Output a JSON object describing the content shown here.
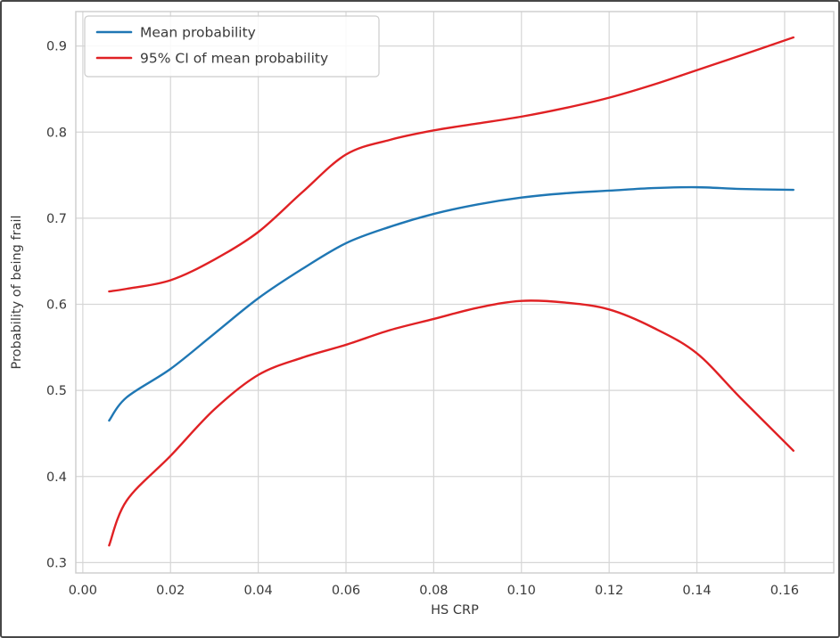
{
  "window": {
    "background": "#ffffff",
    "border_color": "#474747"
  },
  "chart_data": {
    "type": "line",
    "title": "",
    "xlabel": "HS CRP",
    "ylabel": "Probability of being frail",
    "xlim": [
      -0.0016,
      0.1712
    ],
    "ylim": [
      0.288,
      0.94
    ],
    "x_ticks": [
      0.0,
      0.02,
      0.04,
      0.06,
      0.08,
      0.1,
      0.12,
      0.14,
      0.16
    ],
    "x_tick_labels": [
      "0.00",
      "0.02",
      "0.04",
      "0.06",
      "0.08",
      "0.10",
      "0.12",
      "0.14",
      "0.16"
    ],
    "y_ticks": [
      0.3,
      0.4,
      0.5,
      0.6,
      0.7,
      0.8,
      0.9
    ],
    "y_tick_labels": [
      "0.3",
      "0.4",
      "0.5",
      "0.6",
      "0.7",
      "0.8",
      "0.9"
    ],
    "grid": true,
    "legend_position": "upper left",
    "x": [
      0.006,
      0.01,
      0.02,
      0.03,
      0.04,
      0.05,
      0.06,
      0.07,
      0.08,
      0.09,
      0.1,
      0.11,
      0.12,
      0.13,
      0.14,
      0.15,
      0.162
    ],
    "series": [
      {
        "name": "mean-probability",
        "legend_label": "Mean probability",
        "color": "#1f77b4",
        "values": [
          0.465,
          0.492,
          0.525,
          0.566,
          0.607,
          0.641,
          0.671,
          0.69,
          0.705,
          0.716,
          0.724,
          0.729,
          0.732,
          0.735,
          0.736,
          0.734,
          0.733
        ]
      },
      {
        "name": "ci-upper",
        "legend_label": "95% CI of mean probability",
        "color": "#e02124",
        "values": [
          0.615,
          0.618,
          0.628,
          0.652,
          0.684,
          0.73,
          0.774,
          0.791,
          0.802,
          0.81,
          0.818,
          0.828,
          0.84,
          0.855,
          0.872,
          0.889,
          0.91
        ]
      },
      {
        "name": "ci-lower",
        "legend_label": "95% CI of mean probability",
        "color": "#e02124",
        "values": [
          0.32,
          0.372,
          0.424,
          0.478,
          0.518,
          0.538,
          0.553,
          0.57,
          0.583,
          0.596,
          0.604,
          0.602,
          0.594,
          0.573,
          0.543,
          0.491,
          0.43
        ]
      }
    ],
    "legend_entries": [
      {
        "label": "Mean probability",
        "color": "#1f77b4"
      },
      {
        "label": "95% CI of mean probability",
        "color": "#e02124"
      }
    ],
    "colors": {
      "grid": "#d6d6d6",
      "spine": "#cccccc",
      "tick_label": "#3a3a3a",
      "axis_label": "#3a3a3a",
      "legend_border": "#cccccc",
      "legend_background": "#ffffff"
    }
  }
}
